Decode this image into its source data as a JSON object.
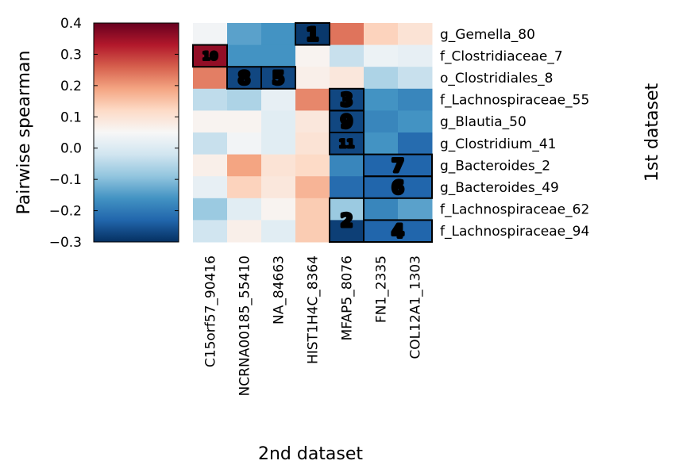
{
  "chart_data": {
    "type": "heatmap",
    "colorbar": {
      "label": "Pairwise spearman",
      "range": [
        -0.3,
        0.4
      ],
      "ticks": [
        "0.4",
        "0.3",
        "0.2",
        "0.1",
        "0.0",
        "−0.1",
        "−0.2",
        "−0.3"
      ],
      "colormap": "RdBu_r"
    },
    "xlabel": "2nd dataset",
    "ylabel": "1st dataset",
    "columns": [
      "C15orf57_90416",
      "NCRNA00185_55410",
      "NA_84663",
      "HIST1H4C_8364",
      "MFAP5_8076",
      "FN1_2335",
      "COL12A1_1303"
    ],
    "rows": [
      "g_Gemella_80",
      "f_Clostridiaceae_7",
      "o_Clostridiales_8",
      "f_Lachnospiraceae_55",
      "g_Blautia_50",
      "g_Clostridium_41",
      "g_Bacteroides_2",
      "g_Bacteroides_49",
      "f_Lachnospiraceae_62",
      "f_Lachnospiraceae_94"
    ],
    "values": [
      [
        0.04,
        -0.14,
        -0.16,
        -0.29,
        0.24,
        0.13,
        0.1
      ],
      [
        0.36,
        -0.16,
        -0.16,
        0.06,
        -0.03,
        0.03,
        0.02
      ],
      [
        0.23,
        -0.27,
        -0.27,
        0.07,
        0.09,
        -0.06,
        -0.03
      ],
      [
        -0.04,
        -0.06,
        0.02,
        0.22,
        -0.27,
        -0.16,
        -0.18
      ],
      [
        0.06,
        0.06,
        0.01,
        0.09,
        -0.27,
        -0.18,
        -0.16
      ],
      [
        -0.03,
        0.04,
        0.01,
        0.1,
        -0.27,
        -0.16,
        -0.22
      ],
      [
        0.07,
        0.19,
        0.1,
        0.12,
        -0.18,
        -0.23,
        -0.23
      ],
      [
        0.02,
        0.13,
        0.09,
        0.17,
        -0.22,
        -0.23,
        -0.23
      ],
      [
        -0.08,
        0.01,
        0.06,
        0.14,
        -0.08,
        -0.18,
        -0.14
      ],
      [
        -0.02,
        0.07,
        0.01,
        0.14,
        -0.28,
        -0.23,
        -0.23
      ]
    ],
    "clusters": [
      {
        "label": "1",
        "rows": [
          0,
          0
        ],
        "cols": [
          3,
          3
        ]
      },
      {
        "label": "10",
        "rows": [
          1,
          1
        ],
        "cols": [
          0,
          0
        ]
      },
      {
        "label": "8",
        "rows": [
          2,
          2
        ],
        "cols": [
          1,
          1
        ]
      },
      {
        "label": "5",
        "rows": [
          2,
          2
        ],
        "cols": [
          2,
          2
        ]
      },
      {
        "label": "3",
        "rows": [
          3,
          3
        ],
        "cols": [
          4,
          4
        ]
      },
      {
        "label": "9",
        "rows": [
          4,
          4
        ],
        "cols": [
          4,
          4
        ]
      },
      {
        "label": "11",
        "rows": [
          5,
          5
        ],
        "cols": [
          4,
          4
        ]
      },
      {
        "label": "7",
        "rows": [
          6,
          6
        ],
        "cols": [
          5,
          6
        ]
      },
      {
        "label": "6",
        "rows": [
          7,
          7
        ],
        "cols": [
          5,
          6
        ]
      },
      {
        "label": "2",
        "rows": [
          8,
          9
        ],
        "cols": [
          4,
          4
        ]
      },
      {
        "label": "4",
        "rows": [
          9,
          9
        ],
        "cols": [
          5,
          6
        ]
      }
    ]
  }
}
